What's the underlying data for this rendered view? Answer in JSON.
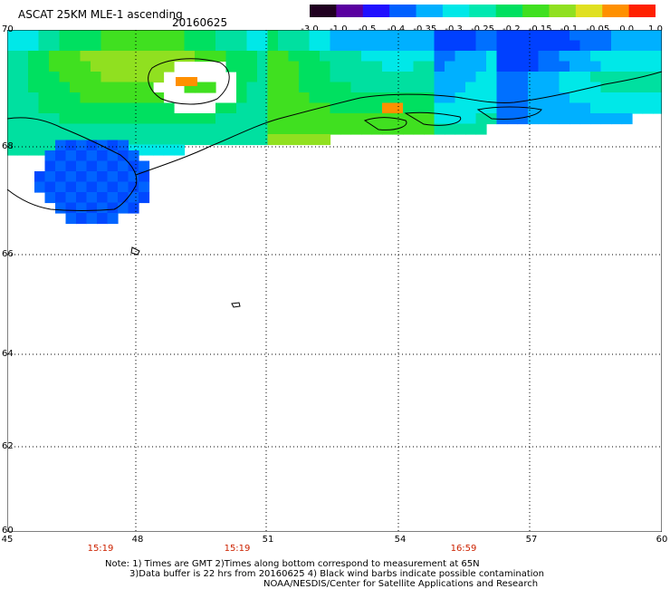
{
  "header": {
    "title": "ASCAT 25KM MLE-1 ascending",
    "date": "20160625"
  },
  "colorbar": {
    "labels": [
      "-3.0",
      "-1.0",
      "-0.5",
      "-0.4",
      "-0.35",
      "-0.3",
      "-0.25",
      "-0.2",
      "-0.15",
      "-0.1",
      "-0.05",
      "0.0",
      "1.0"
    ],
    "colors": [
      "#200020",
      "#5a00a0",
      "#2010ff",
      "#0060ff",
      "#00b0ff",
      "#00e8e8",
      "#00e8b0",
      "#00e060",
      "#40e020",
      "#90e020",
      "#e0e020",
      "#ff9000",
      "#ff2000"
    ]
  },
  "axes": {
    "y_labels": [
      "70",
      "68",
      "66",
      "64",
      "62",
      "60"
    ],
    "x_labels": [
      "45",
      "48",
      "51",
      "54",
      "57",
      "60"
    ],
    "times": [
      "15:19",
      "15:19",
      "16:59"
    ]
  },
  "notes": {
    "line1": "Note: 1) Times are GMT 2)Times along bottom correspond to measurement at 65N",
    "line2": "3)Data buffer is 22 hrs from 20160625 4) Black wind barbs indicate possible contamination",
    "line3": "NOAA/NESDIS/Center for Satellite Applications and Research"
  }
}
